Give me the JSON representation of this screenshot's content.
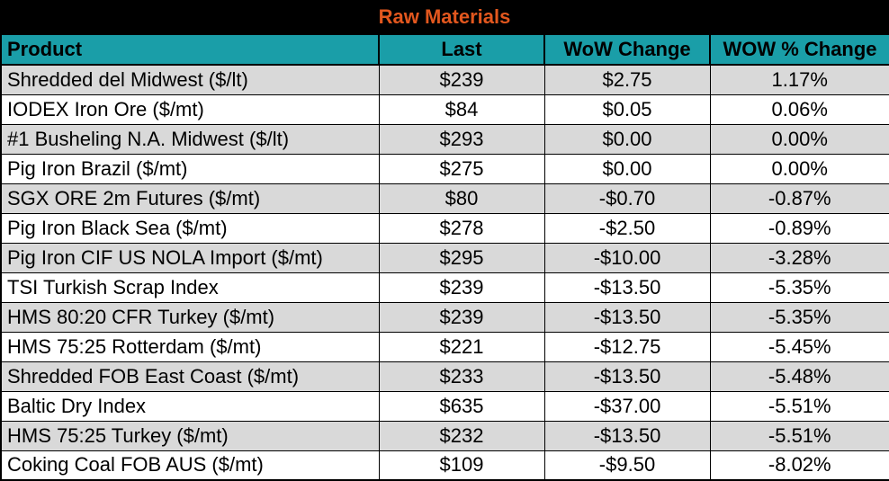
{
  "title": "Raw Materials",
  "columns": {
    "product": "Product",
    "last": "Last",
    "wow_change": "WoW Change",
    "wow_pct_change": "WOW % Change"
  },
  "rows": [
    {
      "product": "Shredded del  Midwest ($/lt)",
      "last": "$239",
      "wow_change": "$2.75",
      "wow_pct": "1.17%"
    },
    {
      "product": "IODEX  Iron Ore ($/mt)",
      "last": "$84",
      "wow_change": "$0.05",
      "wow_pct": "0.06%"
    },
    {
      "product": "#1 Busheling N.A. Midwest ($/lt)",
      "last": "$293",
      "wow_change": "$0.00",
      "wow_pct": "0.00%"
    },
    {
      "product": "Pig Iron Brazil ($/mt)",
      "last": "$275",
      "wow_change": "$0.00",
      "wow_pct": "0.00%"
    },
    {
      "product": "SGX ORE 2m Futures ($/mt)",
      "last": "$80",
      "wow_change": "-$0.70",
      "wow_pct": "-0.87%"
    },
    {
      "product": "Pig Iron Black Sea ($/mt)",
      "last": "$278",
      "wow_change": "-$2.50",
      "wow_pct": "-0.89%"
    },
    {
      "product": "Pig Iron CIF US NOLA Import ($/mt)",
      "last": "$295",
      "wow_change": "-$10.00",
      "wow_pct": "-3.28%"
    },
    {
      "product": "TSI Turkish Scrap Index",
      "last": "$239",
      "wow_change": "-$13.50",
      "wow_pct": "-5.35%"
    },
    {
      "product": "HMS 80:20 CFR Turkey ($/mt)",
      "last": "$239",
      "wow_change": "-$13.50",
      "wow_pct": "-5.35%"
    },
    {
      "product": "HMS 75:25 Rotterdam ($/mt)",
      "last": "$221",
      "wow_change": "-$12.75",
      "wow_pct": "-5.45%"
    },
    {
      "product": "Shredded FOB East Coast ($/mt)",
      "last": "$233",
      "wow_change": "-$13.50",
      "wow_pct": "-5.48%"
    },
    {
      "product": "Baltic Dry Index",
      "last": "$635",
      "wow_change": "-$37.00",
      "wow_pct": "-5.51%"
    },
    {
      "product": "HMS 75:25 Turkey ($/mt)",
      "last": "$232",
      "wow_change": "-$13.50",
      "wow_pct": "-5.51%"
    },
    {
      "product": "Coking Coal FOB AUS ($/mt)",
      "last": "$109",
      "wow_change": "-$9.50",
      "wow_pct": "-8.02%"
    }
  ],
  "colors": {
    "title_background": "#000000",
    "title_text": "#e2571e",
    "header_background": "#1a9ea8",
    "shaded_row": "#d9d9d9",
    "plain_row": "#ffffff"
  }
}
